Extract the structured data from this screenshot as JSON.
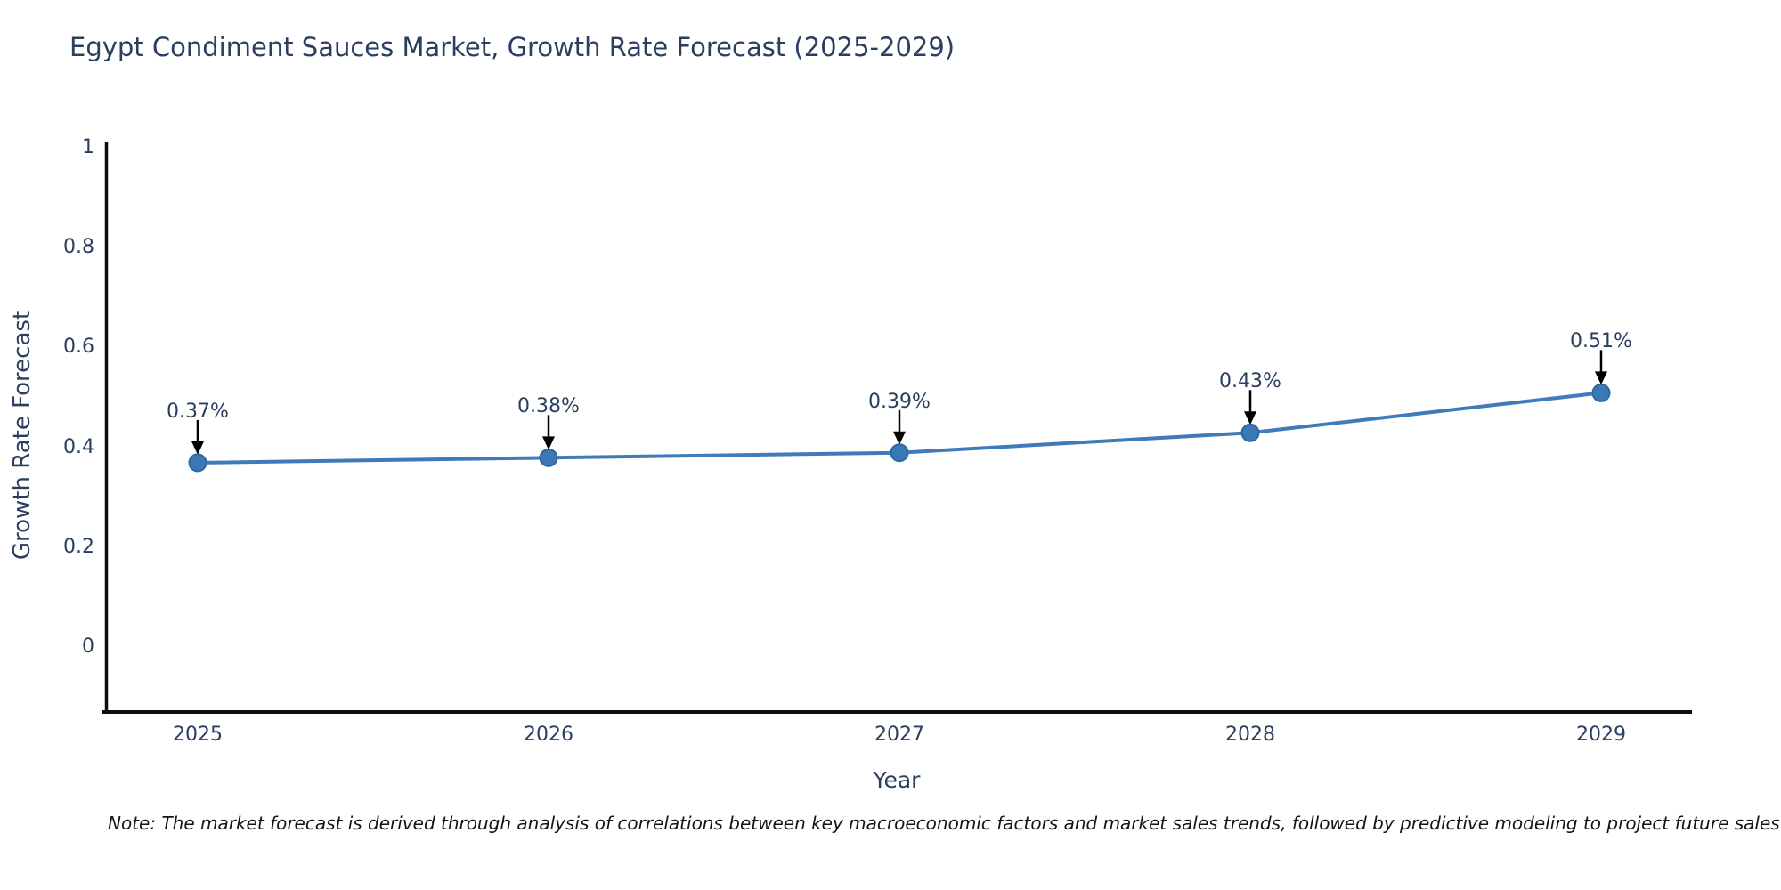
{
  "chart_data": {
    "type": "line",
    "title": "Egypt Condiment Sauces Market, Growth Rate Forecast (2025-2029)",
    "xlabel": "Year",
    "ylabel": "Growth Rate Forecast",
    "x": [
      "2025",
      "2026",
      "2027",
      "2028",
      "2029"
    ],
    "values": [
      0.37,
      0.38,
      0.39,
      0.43,
      0.51
    ],
    "point_labels": [
      "0.37%",
      "0.38%",
      "0.39%",
      "0.43%",
      "0.51%"
    ],
    "ytick_labels": [
      "1",
      "0.8",
      "0.6",
      "0.4",
      "0.2",
      "0"
    ],
    "yticks": [
      1,
      0.8,
      0.6,
      0.4,
      0.2,
      0
    ],
    "ylim": [
      -0.13,
      1.06
    ],
    "grid": false,
    "legend_position": "none",
    "colors": {
      "line": "#3f7bb8",
      "marker_fill": "#3a78b8",
      "marker_edge": "#2d689f",
      "axis": "#0d0e11",
      "text": "#2a3f5f",
      "annotation_arrow": "#000000"
    }
  },
  "note": "Note: The market forecast is derived through analysis of correlations between key macroeconomic factors and market sales trends, followed by predictive modeling to project future sales"
}
